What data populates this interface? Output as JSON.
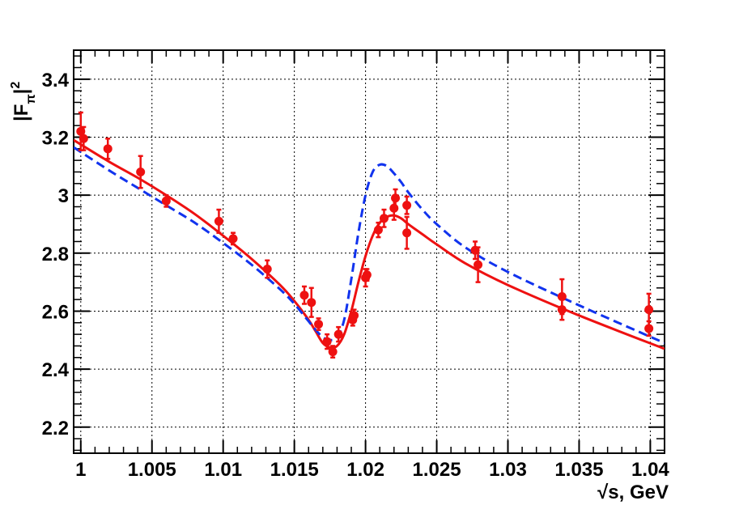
{
  "chart_data": {
    "type": "scatter",
    "xlabel": "√s, GeV",
    "ylabel": "|F_π|²",
    "ylabel_main": "|F",
    "ylabel_sub": "π",
    "ylabel_close": "|",
    "ylabel_sup": "2",
    "xlim": [
      0.9995,
      1.041
    ],
    "ylim": [
      2.11,
      3.5
    ],
    "grid": true,
    "x_ticks": [
      1.0,
      1.005,
      1.01,
      1.015,
      1.02,
      1.025,
      1.03,
      1.035,
      1.04
    ],
    "x_tick_labels": [
      "1",
      "1.005",
      "1.01",
      "1.015",
      "1.02",
      "1.025",
      "1.03",
      "1.035",
      "1.04"
    ],
    "y_ticks": [
      2.2,
      2.4,
      2.6,
      2.8,
      3.0,
      3.2,
      3.4
    ],
    "y_tick_labels": [
      "2.2",
      "2.4",
      "2.6",
      "2.8",
      "3",
      "3.2",
      "3.4"
    ],
    "colors": {
      "data": "#ee1111",
      "fit_solid": "#ee1111",
      "fit_dashed": "#1133ee",
      "grid": "#000000"
    },
    "data_points": [
      {
        "x": 1.0,
        "y": 3.22,
        "err": 0.065
      },
      {
        "x": 1.0002,
        "y": 3.195,
        "err": 0.04
      },
      {
        "x": 1.0019,
        "y": 3.16,
        "err": 0.035
      },
      {
        "x": 1.0042,
        "y": 3.08,
        "err": 0.055
      },
      {
        "x": 1.006,
        "y": 2.98,
        "err": 0.02
      },
      {
        "x": 1.0097,
        "y": 2.91,
        "err": 0.04
      },
      {
        "x": 1.0107,
        "y": 2.85,
        "err": 0.02
      },
      {
        "x": 1.0131,
        "y": 2.745,
        "err": 0.03
      },
      {
        "x": 1.0157,
        "y": 2.655,
        "err": 0.03
      },
      {
        "x": 1.0162,
        "y": 2.63,
        "err": 0.05
      },
      {
        "x": 1.0167,
        "y": 2.555,
        "err": 0.02
      },
      {
        "x": 1.0173,
        "y": 2.495,
        "err": 0.025
      },
      {
        "x": 1.0177,
        "y": 2.46,
        "err": 0.02
      },
      {
        "x": 1.0181,
        "y": 2.52,
        "err": 0.025
      },
      {
        "x": 1.0191,
        "y": 2.57,
        "err": 0.02
      },
      {
        "x": 1.0192,
        "y": 2.585,
        "err": 0.02
      },
      {
        "x": 1.02,
        "y": 2.715,
        "err": 0.03
      },
      {
        "x": 1.0201,
        "y": 2.725,
        "err": 0.02
      },
      {
        "x": 1.0209,
        "y": 2.88,
        "err": 0.025
      },
      {
        "x": 1.0213,
        "y": 2.92,
        "err": 0.03
      },
      {
        "x": 1.022,
        "y": 2.955,
        "err": 0.04
      },
      {
        "x": 1.0221,
        "y": 2.99,
        "err": 0.03
      },
      {
        "x": 1.0229,
        "y": 2.965,
        "err": 0.03
      },
      {
        "x": 1.0229,
        "y": 2.87,
        "err": 0.055
      },
      {
        "x": 1.0277,
        "y": 2.81,
        "err": 0.03
      },
      {
        "x": 1.0279,
        "y": 2.76,
        "err": 0.06
      },
      {
        "x": 1.0338,
        "y": 2.65,
        "err": 0.06
      },
      {
        "x": 1.0338,
        "y": 2.605,
        "err": 0.035
      },
      {
        "x": 1.0399,
        "y": 2.605,
        "err": 0.055
      },
      {
        "x": 1.0399,
        "y": 2.54,
        "err": 0.025
      }
    ],
    "series": [
      {
        "style": "solid",
        "x": [
          0.9995,
          1.002,
          1.004,
          1.006,
          1.008,
          1.01,
          1.012,
          1.014,
          1.015,
          1.016,
          1.0165,
          1.017,
          1.0175,
          1.018,
          1.0185,
          1.019,
          1.0195,
          1.02,
          1.0205,
          1.021,
          1.0215,
          1.022,
          1.0225,
          1.023,
          1.024,
          1.025,
          1.027,
          1.03,
          1.035,
          1.041
        ],
        "y": [
          3.19,
          3.115,
          3.06,
          3.0,
          2.935,
          2.86,
          2.78,
          2.69,
          2.635,
          2.57,
          2.53,
          2.49,
          2.475,
          2.48,
          2.52,
          2.6,
          2.7,
          2.79,
          2.86,
          2.905,
          2.925,
          2.93,
          2.92,
          2.9,
          2.865,
          2.83,
          2.765,
          2.69,
          2.585,
          2.47
        ]
      },
      {
        "style": "dashed",
        "x": [
          0.9995,
          1.002,
          1.004,
          1.006,
          1.008,
          1.01,
          1.012,
          1.014,
          1.015,
          1.016,
          1.0165,
          1.017,
          1.0175,
          1.018,
          1.0185,
          1.019,
          1.0195,
          1.02,
          1.0205,
          1.021,
          1.0215,
          1.022,
          1.0225,
          1.023,
          1.024,
          1.025,
          1.027,
          1.03,
          1.035,
          1.041
        ],
        "y": [
          3.165,
          3.085,
          3.025,
          2.965,
          2.905,
          2.835,
          2.76,
          2.675,
          2.625,
          2.565,
          2.535,
          2.51,
          2.5,
          2.51,
          2.57,
          2.71,
          2.87,
          3.0,
          3.08,
          3.105,
          3.1,
          3.075,
          3.045,
          3.01,
          2.95,
          2.9,
          2.82,
          2.735,
          2.62,
          2.49
        ]
      }
    ]
  }
}
